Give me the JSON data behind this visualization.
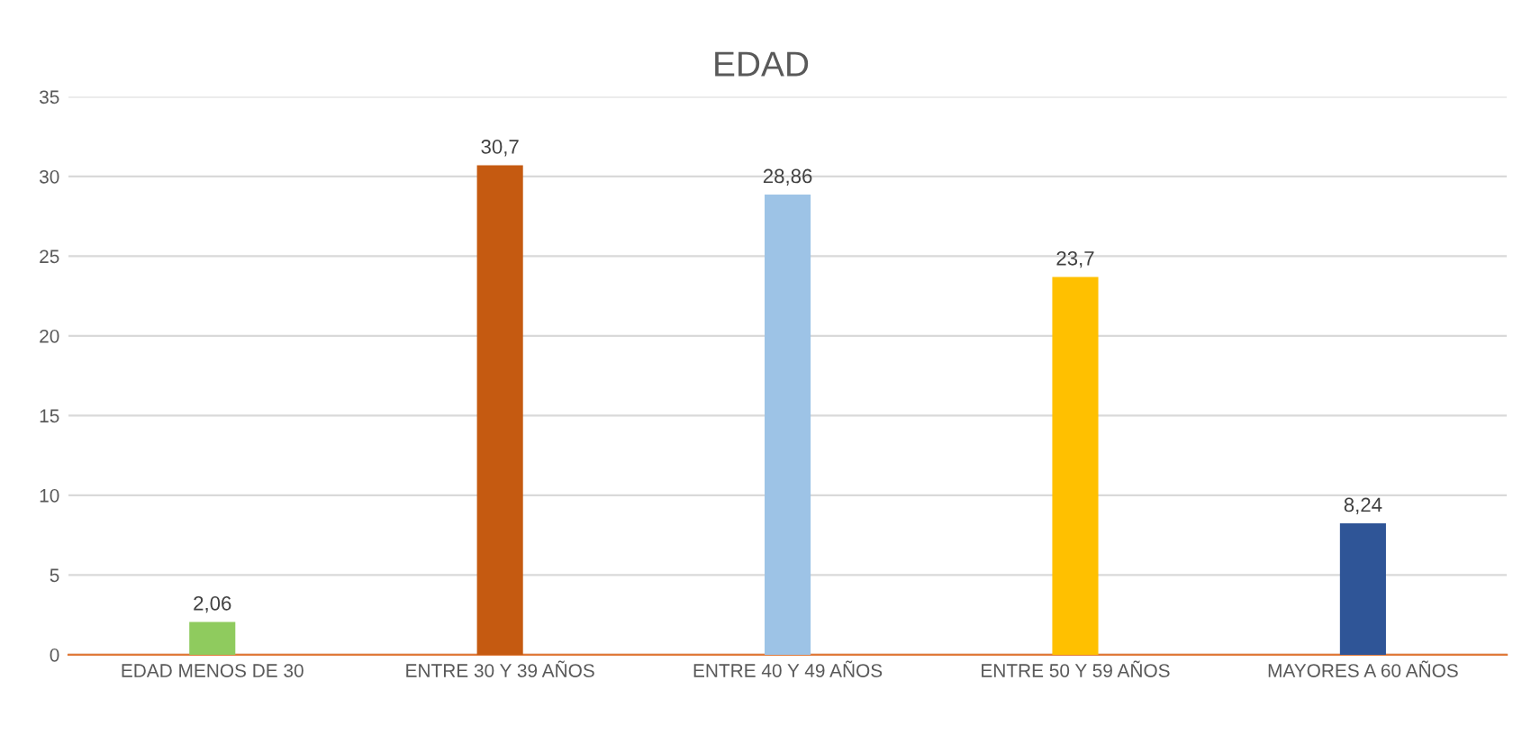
{
  "chart_data": {
    "type": "bar",
    "title": "EDAD",
    "categories": [
      "EDAD MENOS DE 30",
      "ENTRE 30 Y 39 AÑOS",
      "ENTRE 40 Y 49 AÑOS",
      "ENTRE 50 Y 59 AÑOS",
      "MAYORES A 60 AÑOS"
    ],
    "values": [
      2.06,
      30.7,
      28.86,
      23.7,
      8.24
    ],
    "value_labels": [
      "2,06",
      "30,7",
      "28,86",
      "23,7",
      "8,24"
    ],
    "colors": [
      "#8fcb5e",
      "#c55a11",
      "#9dc3e6",
      "#ffc000",
      "#2f5597"
    ],
    "ylim": [
      0,
      35
    ],
    "yticks": [
      0,
      5,
      10,
      15,
      20,
      25,
      30,
      35
    ],
    "grid": "y"
  }
}
